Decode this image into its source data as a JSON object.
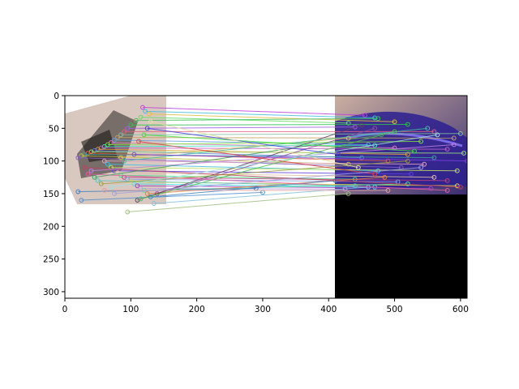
{
  "chart_data": {
    "type": "image",
    "xlim": [
      0,
      610
    ],
    "ylim": [
      310,
      0
    ],
    "y_inverted": true,
    "xticks": [
      0,
      100,
      200,
      300,
      400,
      500,
      600
    ],
    "yticks": [
      0,
      50,
      100,
      150,
      200,
      250,
      300
    ],
    "xtick_labels": [
      "0",
      "100",
      "200",
      "300",
      "400",
      "500",
      "600"
    ],
    "ytick_labels": [
      "0",
      "50",
      "100",
      "150",
      "200",
      "250",
      "300"
    ],
    "title": "",
    "xlabel": "",
    "ylabel": "",
    "grid": false,
    "legend": "none",
    "left_image": {
      "x_range": [
        0,
        153
      ],
      "y_range": [
        0,
        165
      ],
      "content": "rotated photo of a hand-drawn sketch, blank regions white",
      "background_color": "#d8c8c0"
    },
    "right_image": {
      "x_range": [
        410,
        610
      ],
      "y_range": [
        0,
        150
      ],
      "content": "photo of a car with purple/blue tint",
      "padding": {
        "y_range": [
          150,
          310
        ],
        "color": "#000000"
      }
    },
    "matches": [
      {
        "x1": 118,
        "y1": 18,
        "x2": 455,
        "y2": 30,
        "color": "#c040e0"
      },
      {
        "x1": 122,
        "y1": 24,
        "x2": 470,
        "y2": 34,
        "color": "#40c0e0"
      },
      {
        "x1": 128,
        "y1": 28,
        "x2": 500,
        "y2": 40,
        "color": "#e0c040"
      },
      {
        "x1": 115,
        "y1": 33,
        "x2": 430,
        "y2": 42,
        "color": "#60e060"
      },
      {
        "x1": 108,
        "y1": 38,
        "x2": 475,
        "y2": 35,
        "color": "#40c060"
      },
      {
        "x1": 100,
        "y1": 45,
        "x2": 520,
        "y2": 44,
        "color": "#30c050"
      },
      {
        "x1": 95,
        "y1": 50,
        "x2": 440,
        "y2": 48,
        "color": "#a060e0"
      },
      {
        "x1": 90,
        "y1": 55,
        "x2": 560,
        "y2": 55,
        "color": "#e06080"
      },
      {
        "x1": 85,
        "y1": 60,
        "x2": 600,
        "y2": 58,
        "color": "#80c0a0"
      },
      {
        "x1": 80,
        "y1": 64,
        "x2": 590,
        "y2": 65,
        "color": "#c0a060"
      },
      {
        "x1": 75,
        "y1": 68,
        "x2": 460,
        "y2": 75,
        "color": "#60a0e0"
      },
      {
        "x1": 70,
        "y1": 72,
        "x2": 500,
        "y2": 80,
        "color": "#e080c0"
      },
      {
        "x1": 65,
        "y1": 75,
        "x2": 540,
        "y2": 70,
        "color": "#80e040"
      },
      {
        "x1": 60,
        "y1": 78,
        "x2": 470,
        "y2": 76,
        "color": "#40e0c0"
      },
      {
        "x1": 55,
        "y1": 80,
        "x2": 580,
        "y2": 82,
        "color": "#c060c0"
      },
      {
        "x1": 50,
        "y1": 82,
        "x2": 520,
        "y2": 90,
        "color": "#e0a040"
      },
      {
        "x1": 45,
        "y1": 84,
        "x2": 450,
        "y2": 95,
        "color": "#6080e0"
      },
      {
        "x1": 40,
        "y1": 86,
        "x2": 605,
        "y2": 88,
        "color": "#a0e080"
      },
      {
        "x1": 35,
        "y1": 88,
        "x2": 490,
        "y2": 100,
        "color": "#e06040"
      },
      {
        "x1": 30,
        "y1": 90,
        "x2": 560,
        "y2": 95,
        "color": "#40a0a0"
      },
      {
        "x1": 25,
        "y1": 92,
        "x2": 430,
        "y2": 105,
        "color": "#c0c040"
      },
      {
        "x1": 20,
        "y1": 95,
        "x2": 510,
        "y2": 110,
        "color": "#8060c0"
      },
      {
        "x1": 60,
        "y1": 100,
        "x2": 545,
        "y2": 105,
        "color": "#e0a0c0"
      },
      {
        "x1": 65,
        "y1": 105,
        "x2": 475,
        "y2": 115,
        "color": "#40c0e0"
      },
      {
        "x1": 70,
        "y1": 110,
        "x2": 595,
        "y2": 115,
        "color": "#c0e060"
      },
      {
        "x1": 75,
        "y1": 115,
        "x2": 525,
        "y2": 120,
        "color": "#6040e0"
      },
      {
        "x1": 80,
        "y1": 118,
        "x2": 560,
        "y2": 125,
        "color": "#e0c0a0"
      },
      {
        "x1": 85,
        "y1": 122,
        "x2": 440,
        "y2": 128,
        "color": "#40e080"
      },
      {
        "x1": 90,
        "y1": 125,
        "x2": 580,
        "y2": 130,
        "color": "#c04080"
      },
      {
        "x1": 95,
        "y1": 128,
        "x2": 505,
        "y2": 132,
        "color": "#80a0e0"
      },
      {
        "x1": 100,
        "y1": 132,
        "x2": 595,
        "y2": 138,
        "color": "#e0e040"
      },
      {
        "x1": 105,
        "y1": 135,
        "x2": 470,
        "y2": 140,
        "color": "#40e0e0"
      },
      {
        "x1": 110,
        "y1": 138,
        "x2": 555,
        "y2": 142,
        "color": "#a040c0"
      },
      {
        "x1": 115,
        "y1": 142,
        "x2": 425,
        "y2": 143,
        "color": "#c0a0e0"
      },
      {
        "x1": 120,
        "y1": 145,
        "x2": 520,
        "y2": 135,
        "color": "#60e0a0"
      },
      {
        "x1": 125,
        "y1": 150,
        "x2": 485,
        "y2": 125,
        "color": "#e08040"
      },
      {
        "x1": 130,
        "y1": 155,
        "x2": 410,
        "y2": 130,
        "color": "#4080c0"
      },
      {
        "x1": 135,
        "y1": 165,
        "x2": 460,
        "y2": 140,
        "color": "#80c0e0"
      },
      {
        "x1": 95,
        "y1": 178,
        "x2": 430,
        "y2": 150,
        "color": "#a0c080"
      },
      {
        "x1": 25,
        "y1": 160,
        "x2": 300,
        "y2": 148,
        "color": "#5090d0"
      },
      {
        "x1": 20,
        "y1": 147,
        "x2": 290,
        "y2": 142,
        "color": "#4080c0"
      },
      {
        "x1": 140,
        "y1": 150,
        "x2": 470,
        "y2": 50,
        "color": "#9050a0"
      },
      {
        "x1": 110,
        "y1": 160,
        "x2": 450,
        "y2": 45,
        "color": "#604060"
      },
      {
        "x1": 115,
        "y1": 158,
        "x2": 500,
        "y2": 55,
        "color": "#50c050"
      },
      {
        "x1": 30,
        "y1": 110,
        "x2": 600,
        "y2": 140,
        "color": "#c04060"
      },
      {
        "x1": 35,
        "y1": 120,
        "x2": 580,
        "y2": 145,
        "color": "#e060a0"
      },
      {
        "x1": 50,
        "y1": 130,
        "x2": 440,
        "y2": 138,
        "color": "#60c0c0"
      },
      {
        "x1": 55,
        "y1": 135,
        "x2": 520,
        "y2": 100,
        "color": "#a0a040"
      },
      {
        "x1": 45,
        "y1": 125,
        "x2": 480,
        "y2": 60,
        "color": "#40a060"
      },
      {
        "x1": 40,
        "y1": 115,
        "x2": 590,
        "y2": 75,
        "color": "#c080e0"
      },
      {
        "x1": 85,
        "y1": 95,
        "x2": 430,
        "y2": 65,
        "color": "#e0c060"
      },
      {
        "x1": 90,
        "y1": 100,
        "x2": 550,
        "y2": 50,
        "color": "#40c0a0"
      },
      {
        "x1": 105,
        "y1": 90,
        "x2": 610,
        "y2": 100,
        "color": "#8040e0"
      },
      {
        "x1": 112,
        "y1": 70,
        "x2": 470,
        "y2": 120,
        "color": "#e04040"
      },
      {
        "x1": 120,
        "y1": 60,
        "x2": 530,
        "y2": 85,
        "color": "#40e040"
      },
      {
        "x1": 125,
        "y1": 50,
        "x2": 415,
        "y2": 90,
        "color": "#4040e0"
      },
      {
        "x1": 130,
        "y1": 40,
        "x2": 445,
        "y2": 110,
        "color": "#e0e0a0"
      },
      {
        "x1": 70,
        "y1": 140,
        "x2": 565,
        "y2": 60,
        "color": "#a0e0e0"
      },
      {
        "x1": 60,
        "y1": 145,
        "x2": 490,
        "y2": 145,
        "color": "#e0a0a0"
      },
      {
        "x1": 75,
        "y1": 150,
        "x2": 540,
        "y2": 110,
        "color": "#a0a0e0"
      }
    ]
  }
}
